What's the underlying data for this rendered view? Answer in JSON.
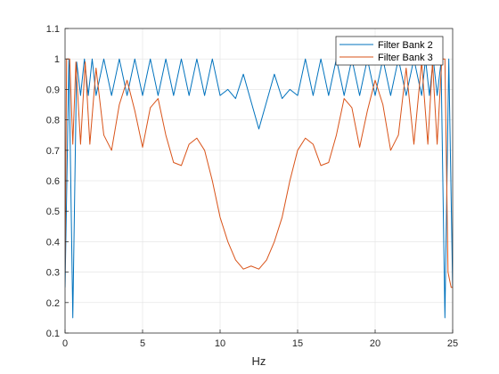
{
  "chart_data": {
    "type": "line",
    "title": "",
    "xlabel": "Hz",
    "ylabel": "",
    "xlim": [
      0,
      25
    ],
    "ylim": [
      0.1,
      1.1
    ],
    "xticks": [
      "0",
      "5",
      "10",
      "15",
      "20",
      "25"
    ],
    "yticks": [
      "0.1",
      "0.2",
      "0.3",
      "0.4",
      "0.5",
      "0.6",
      "0.7",
      "0.8",
      "0.9",
      "1",
      "1.1"
    ],
    "grid": true,
    "legend_position": "top-right",
    "series": [
      {
        "name": "Filter Bank 2",
        "color": "#0072BD",
        "x": [
          0,
          0.25,
          0.5,
          0.75,
          1.0,
          1.25,
          1.5,
          1.75,
          2.0,
          2.5,
          3.0,
          3.5,
          4.0,
          4.5,
          5.0,
          5.5,
          6.0,
          6.5,
          7.0,
          7.5,
          8.0,
          8.5,
          9.0,
          9.5,
          10.0,
          10.5,
          11.0,
          11.5,
          12.0,
          12.5,
          13.0,
          13.5,
          14.0,
          14.5,
          15.0,
          15.5,
          16.0,
          16.5,
          17.0,
          17.5,
          18.0,
          18.5,
          19.0,
          19.5,
          20.0,
          20.5,
          21.0,
          21.5,
          22.0,
          22.5,
          23.0,
          23.25,
          23.5,
          23.75,
          24.0,
          24.25,
          24.5,
          24.75,
          25.0
        ],
        "values": [
          0.25,
          1.0,
          0.15,
          0.99,
          0.88,
          1.0,
          0.88,
          1.0,
          0.88,
          1.0,
          0.88,
          1.0,
          0.88,
          1.0,
          0.88,
          1.0,
          0.88,
          1.0,
          0.88,
          1.0,
          0.88,
          1.0,
          0.88,
          1.0,
          0.88,
          0.9,
          0.87,
          0.95,
          0.86,
          0.77,
          0.86,
          0.95,
          0.87,
          0.9,
          0.88,
          1.0,
          0.88,
          1.0,
          0.88,
          1.0,
          0.88,
          1.0,
          0.88,
          1.0,
          0.88,
          1.0,
          0.88,
          1.0,
          0.88,
          1.0,
          0.88,
          1.0,
          0.88,
          1.0,
          0.88,
          0.99,
          0.15,
          1.0,
          0.25
        ]
      },
      {
        "name": "Filter Bank 3",
        "color": "#D95319",
        "x": [
          0,
          0.1,
          0.3,
          0.5,
          0.7,
          1.0,
          1.3,
          1.6,
          2.0,
          2.5,
          3.0,
          3.5,
          4.0,
          4.5,
          5.0,
          5.5,
          6.0,
          6.5,
          7.0,
          7.5,
          8.0,
          8.5,
          9.0,
          9.5,
          10.0,
          10.5,
          11.0,
          11.5,
          12.0,
          12.5,
          13.0,
          13.5,
          14.0,
          14.5,
          15.0,
          15.5,
          16.0,
          16.5,
          17.0,
          17.5,
          18.0,
          18.5,
          19.0,
          19.5,
          20.0,
          20.5,
          21.0,
          21.5,
          22.0,
          22.5,
          23.0,
          23.4,
          23.7,
          24.0,
          24.3,
          24.5,
          24.7,
          24.9,
          25.0
        ],
        "values": [
          0.3,
          1.0,
          1.0,
          0.72,
          0.99,
          0.72,
          0.99,
          0.72,
          0.97,
          0.75,
          0.7,
          0.85,
          0.93,
          0.83,
          0.71,
          0.84,
          0.87,
          0.75,
          0.66,
          0.65,
          0.72,
          0.74,
          0.7,
          0.6,
          0.48,
          0.4,
          0.34,
          0.31,
          0.32,
          0.31,
          0.34,
          0.4,
          0.48,
          0.6,
          0.7,
          0.74,
          0.72,
          0.65,
          0.66,
          0.75,
          0.87,
          0.84,
          0.71,
          0.83,
          0.93,
          0.85,
          0.7,
          0.75,
          0.97,
          0.72,
          0.99,
          0.72,
          0.99,
          0.72,
          1.0,
          1.0,
          0.3,
          0.25,
          0.25
        ]
      }
    ]
  }
}
